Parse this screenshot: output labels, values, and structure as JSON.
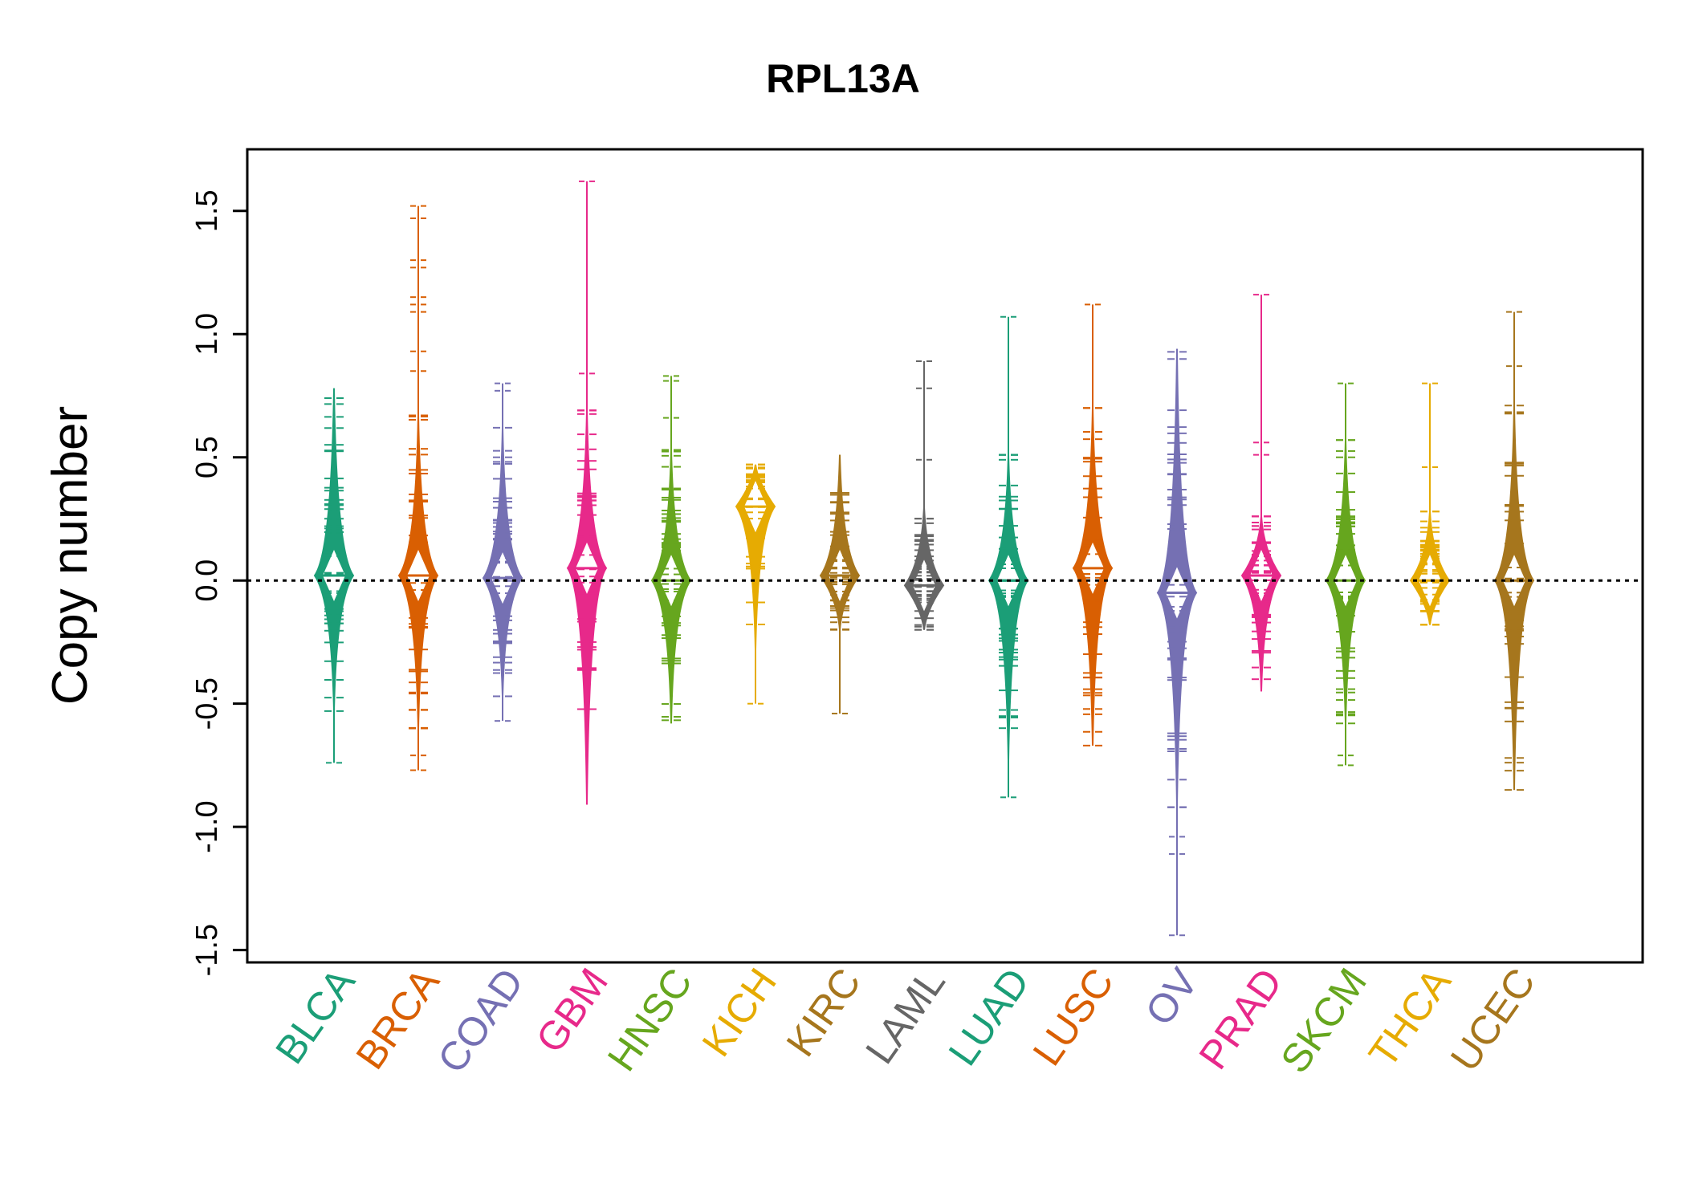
{
  "chart_data": {
    "type": "bean",
    "title": "RPL13A",
    "ylabel": "Copy number",
    "xlabel": "",
    "ylim": [
      -1.55,
      1.75
    ],
    "yticks": [
      -1.5,
      -1.0,
      -0.5,
      0.0,
      0.5,
      1.0,
      1.5
    ],
    "ytick_labels": [
      "-1.5",
      "-1.0",
      "-0.5",
      "0.0",
      "0.5",
      "1.0",
      "1.5"
    ],
    "reference_line": 0.0,
    "grid": false,
    "legend": "none",
    "categories": [
      "BLCA",
      "BRCA",
      "COAD",
      "GBM",
      "HNSC",
      "KICH",
      "KIRC",
      "LAML",
      "LUAD",
      "LUSC",
      "OV",
      "PRAD",
      "SKCM",
      "THCA",
      "UCEC"
    ],
    "colors": [
      "#1b9e77",
      "#d95f02",
      "#7570b3",
      "#e7298a",
      "#66a61e",
      "#e6ab02",
      "#a6761d",
      "#666666",
      "#1b9e77",
      "#d95f02",
      "#7570b3",
      "#e7298a",
      "#66a61e",
      "#e6ab02",
      "#a6761d"
    ],
    "series": [
      {
        "name": "BLCA",
        "min": -0.74,
        "max": 0.78,
        "core_low": -0.53,
        "core_high": 0.78,
        "mode": 0.02,
        "outliers": [
          -0.74
        ]
      },
      {
        "name": "BRCA",
        "min": -0.77,
        "max": 1.52,
        "core_low": -0.6,
        "core_high": 0.67,
        "mode": 0.02,
        "outliers": [
          0.85,
          0.93,
          1.09,
          1.12,
          1.15,
          1.27,
          1.3,
          1.47,
          1.52,
          -0.71,
          -0.77
        ]
      },
      {
        "name": "COAD",
        "min": -0.57,
        "max": 0.8,
        "core_low": -0.47,
        "core_high": 0.62,
        "mode": 0.01,
        "outliers": [
          0.77,
          0.8,
          -0.57
        ]
      },
      {
        "name": "GBM",
        "min": -0.91,
        "max": 1.62,
        "core_low": -0.91,
        "core_high": 0.69,
        "mode": 0.05,
        "outliers": [
          0.84,
          1.62
        ]
      },
      {
        "name": "HNSC",
        "min": -0.58,
        "max": 0.83,
        "core_low": -0.58,
        "core_high": 0.53,
        "mode": 0.0,
        "outliers": [
          0.66,
          0.81,
          0.83
        ]
      },
      {
        "name": "KICH",
        "min": -0.5,
        "max": 0.47,
        "core_low": -0.28,
        "core_high": 0.47,
        "mode": 0.3,
        "outliers": [
          -0.5
        ]
      },
      {
        "name": "KIRC",
        "min": -0.54,
        "max": 0.51,
        "core_low": -0.2,
        "core_high": 0.51,
        "mode": 0.02,
        "outliers": [
          -0.54
        ]
      },
      {
        "name": "LAML",
        "min": -0.2,
        "max": 0.89,
        "core_low": -0.2,
        "core_high": 0.3,
        "mode": -0.02,
        "outliers": [
          0.49,
          0.78,
          0.89
        ]
      },
      {
        "name": "LUAD",
        "min": -0.88,
        "max": 1.07,
        "core_low": -0.73,
        "core_high": 0.51,
        "mode": 0.0,
        "outliers": [
          -0.88,
          1.07
        ]
      },
      {
        "name": "LUSC",
        "min": -0.67,
        "max": 1.12,
        "core_low": -0.67,
        "core_high": 0.7,
        "mode": 0.05,
        "outliers": [
          1.12
        ]
      },
      {
        "name": "OV",
        "min": -1.44,
        "max": 0.94,
        "core_low": -0.92,
        "core_high": 0.94,
        "mode": -0.05,
        "outliers": [
          -1.04,
          -1.11,
          -1.44
        ]
      },
      {
        "name": "PRAD",
        "min": -0.45,
        "max": 1.16,
        "core_low": -0.45,
        "core_high": 0.26,
        "mode": 0.02,
        "outliers": [
          0.51,
          0.56,
          1.16
        ]
      },
      {
        "name": "SKCM",
        "min": -0.75,
        "max": 0.8,
        "core_low": -0.58,
        "core_high": 0.57,
        "mode": 0.0,
        "outliers": [
          -0.71,
          -0.75,
          0.8
        ]
      },
      {
        "name": "THCA",
        "min": -0.18,
        "max": 0.8,
        "core_low": -0.18,
        "core_high": 0.28,
        "mode": 0.0,
        "outliers": [
          0.46,
          0.8
        ]
      },
      {
        "name": "UCEC",
        "min": -0.85,
        "max": 1.09,
        "core_low": -0.85,
        "core_high": 0.71,
        "mode": 0.0,
        "outliers": [
          0.87,
          1.09
        ]
      }
    ]
  }
}
